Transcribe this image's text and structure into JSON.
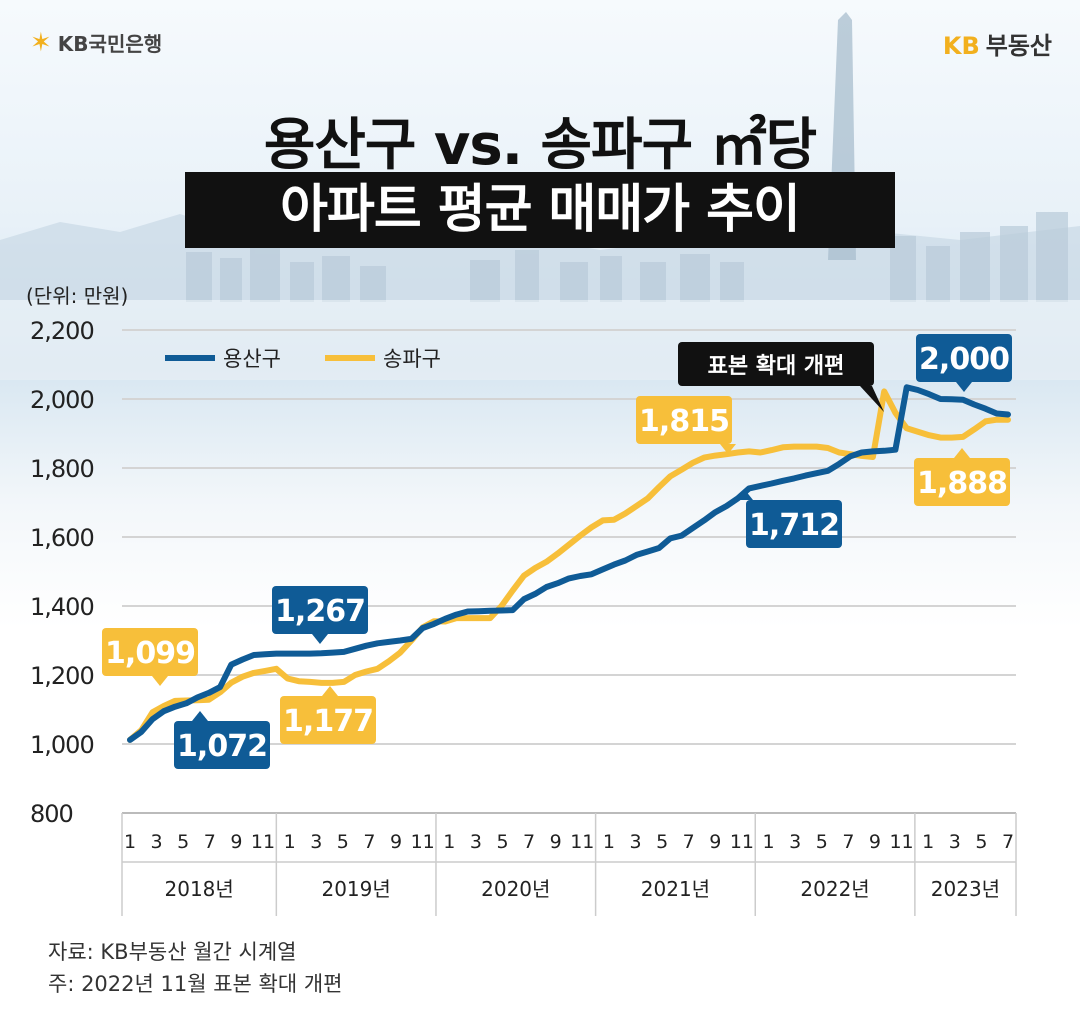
{
  "header": {
    "logo_left": "KB국민은행",
    "logo_right_kb": "KB",
    "logo_right_text": "부동산",
    "title_line1": "용산구 vs. 송파구 ㎡당",
    "title_line2": "아파트 평균 매매가 추이"
  },
  "colors": {
    "yongsan": "#0f5b96",
    "songpa": "#f7bf3a",
    "title_box": "#111111",
    "callout": "#111111"
  },
  "chart_data": {
    "type": "line",
    "unit_label": "(단위: 만원)",
    "ylim": [
      800,
      2200
    ],
    "yticks": [
      "2,200",
      "2,000",
      "1,800",
      "1,600",
      "1,400",
      "1,200",
      "1,000",
      "800"
    ],
    "ytick_values": [
      2200,
      2000,
      1800,
      1600,
      1400,
      1200,
      1000,
      800
    ],
    "month_labels": [
      "1",
      "3",
      "5",
      "7",
      "9",
      "11",
      "1",
      "3",
      "5",
      "7",
      "9",
      "11",
      "1",
      "3",
      "5",
      "7",
      "9",
      "11",
      "1",
      "3",
      "5",
      "7",
      "9",
      "11",
      "1",
      "3",
      "5",
      "7",
      "9",
      "11",
      "1",
      "3",
      "5",
      "7"
    ],
    "years": [
      "2018년",
      "2019년",
      "2020년",
      "2021년",
      "2022년",
      "2023년"
    ],
    "series": [
      {
        "name": "용산구",
        "color": "#0f5b96",
        "values": [
          1012,
          1035,
          1072,
          1095,
          1108,
          1118,
          1135,
          1148,
          1165,
          1230,
          1245,
          1258,
          1260,
          1262,
          1262,
          1262,
          1262,
          1263,
          1265,
          1267,
          1276,
          1285,
          1292,
          1296,
          1300,
          1305,
          1336,
          1348,
          1363,
          1375,
          1384,
          1385,
          1386,
          1387,
          1388,
          1420,
          1435,
          1455,
          1466,
          1480,
          1487,
          1492,
          1506,
          1520,
          1532,
          1548,
          1558,
          1568,
          1596,
          1604,
          1626,
          1648,
          1672,
          1690,
          1712,
          1741,
          1748,
          1755,
          1763,
          1770,
          1778,
          1785,
          1792,
          1812,
          1834,
          1845,
          1848,
          1850,
          1853,
          2034,
          2026,
          2014,
          2000,
          1999,
          1998,
          1984,
          1972,
          1958,
          1955
        ]
      },
      {
        "name": "송파구",
        "color": "#f7bf3a",
        "values": [
          1012,
          1040,
          1092,
          1110,
          1125,
          1126,
          1127,
          1128,
          1150,
          1178,
          1195,
          1206,
          1212,
          1218,
          1190,
          1182,
          1180,
          1177,
          1177,
          1180,
          1200,
          1210,
          1218,
          1240,
          1265,
          1300,
          1338,
          1356,
          1355,
          1365,
          1365,
          1365,
          1365,
          1400,
          1445,
          1488,
          1510,
          1528,
          1552,
          1578,
          1604,
          1628,
          1648,
          1650,
          1668,
          1690,
          1712,
          1745,
          1776,
          1795,
          1815,
          1830,
          1836,
          1840,
          1845,
          1848,
          1845,
          1852,
          1860,
          1862,
          1862,
          1862,
          1858,
          1845,
          1840,
          1835,
          1832,
          2022,
          1960,
          1915,
          1905,
          1895,
          1888,
          1888,
          1890,
          1912,
          1935,
          1940,
          1940
        ]
      }
    ],
    "annotations": [
      {
        "label": "1,099",
        "series": "송파구"
      },
      {
        "label": "1,072",
        "series": "용산구"
      },
      {
        "label": "1,267",
        "series": "용산구"
      },
      {
        "label": "1,177",
        "series": "송파구"
      },
      {
        "label": "1,815",
        "series": "송파구"
      },
      {
        "label": "1,712",
        "series": "용산구"
      },
      {
        "label": "2,000",
        "series": "용산구"
      },
      {
        "label": "1,888",
        "series": "송파구"
      }
    ],
    "callout": "표본 확대 개편"
  },
  "footer": {
    "source_line1": "자료: KB부동산 월간 시계열",
    "source_line2": "주: 2022년 11월 표본 확대 개편"
  }
}
